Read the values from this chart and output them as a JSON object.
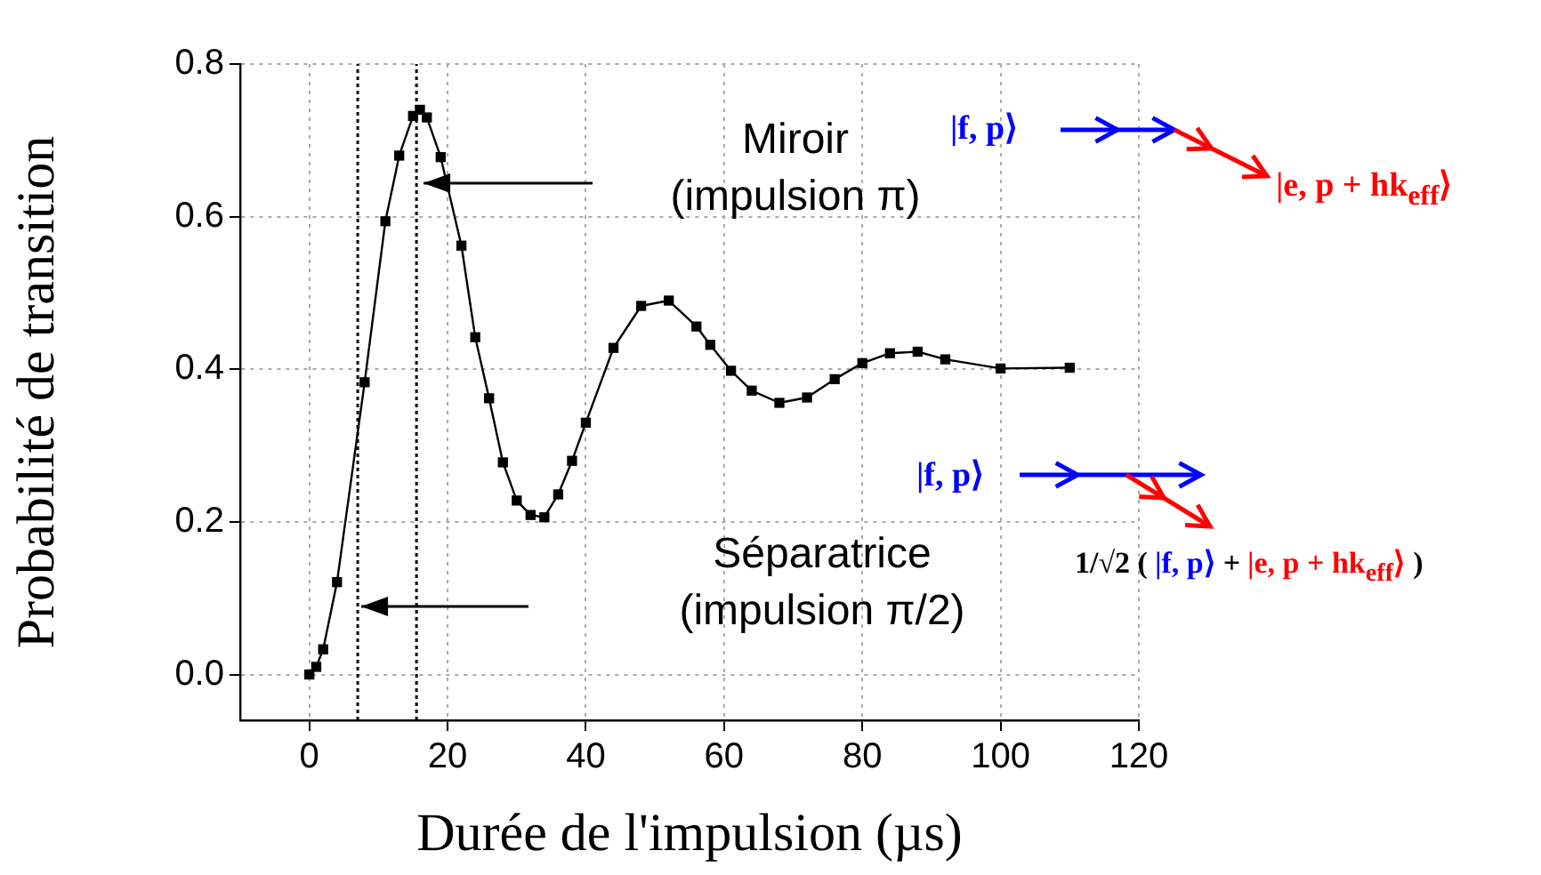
{
  "chart_data": {
    "type": "line",
    "xlabel": "Durée de l'impulsion (µs)",
    "ylabel": "Probabilité de transition",
    "x": [
      0,
      1,
      2,
      4,
      8,
      11,
      13,
      15,
      16,
      17,
      19,
      22,
      24,
      26,
      28,
      30,
      32,
      34,
      36,
      38,
      40,
      44,
      48,
      52,
      56,
      58,
      61,
      64,
      68,
      72,
      76,
      80,
      84,
      88,
      92,
      100,
      110
    ],
    "series": [
      {
        "color": "#000000",
        "values": [
          0,
          0.01,
          0.033,
          0.121,
          0.383,
          0.594,
          0.68,
          0.732,
          0.74,
          0.73,
          0.678,
          0.562,
          0.442,
          0.362,
          0.278,
          0.228,
          0.209,
          0.206,
          0.236,
          0.28,
          0.33,
          0.428,
          0.483,
          0.49,
          0.456,
          0.432,
          0.398,
          0.372,
          0.356,
          0.363,
          0.387,
          0.408,
          0.421,
          0.423,
          0.413,
          0.401,
          0.402
        ]
      }
    ],
    "xlim": [
      -10,
      120
    ],
    "xticks": [
      0,
      20,
      40,
      60,
      80,
      100,
      120
    ],
    "ylim": [
      -0.06,
      0.8
    ],
    "yticks": [
      {
        "value": 0,
        "label": "0.0"
      },
      {
        "value": 0.2,
        "label": "0.2"
      },
      {
        "value": 0.4,
        "label": "0.4"
      },
      {
        "value": 0.6,
        "label": "0.6"
      },
      {
        "value": 0.8,
        "label": "0.8"
      }
    ],
    "ref_lines": [
      {
        "axis": "x",
        "value": 7,
        "line_style": "dotted"
      },
      {
        "axis": "x",
        "value": 15.5,
        "line_style": "dotted"
      }
    ],
    "annotations": [
      "Miroir\n(impulsion π)",
      "Séparatrice\n(impulsion π/2)",
      "|f, p⟩",
      "|e, p + hk$_{eff}$⟩",
      "|f, p⟩",
      "1/√2 (",
      "|f, p⟩",
      "+",
      "|e, p + hk$_{eff}$⟩",
      ")"
    ],
    "grid": true,
    "marker": "square",
    "line_style": "solid",
    "legend": false
  }
}
